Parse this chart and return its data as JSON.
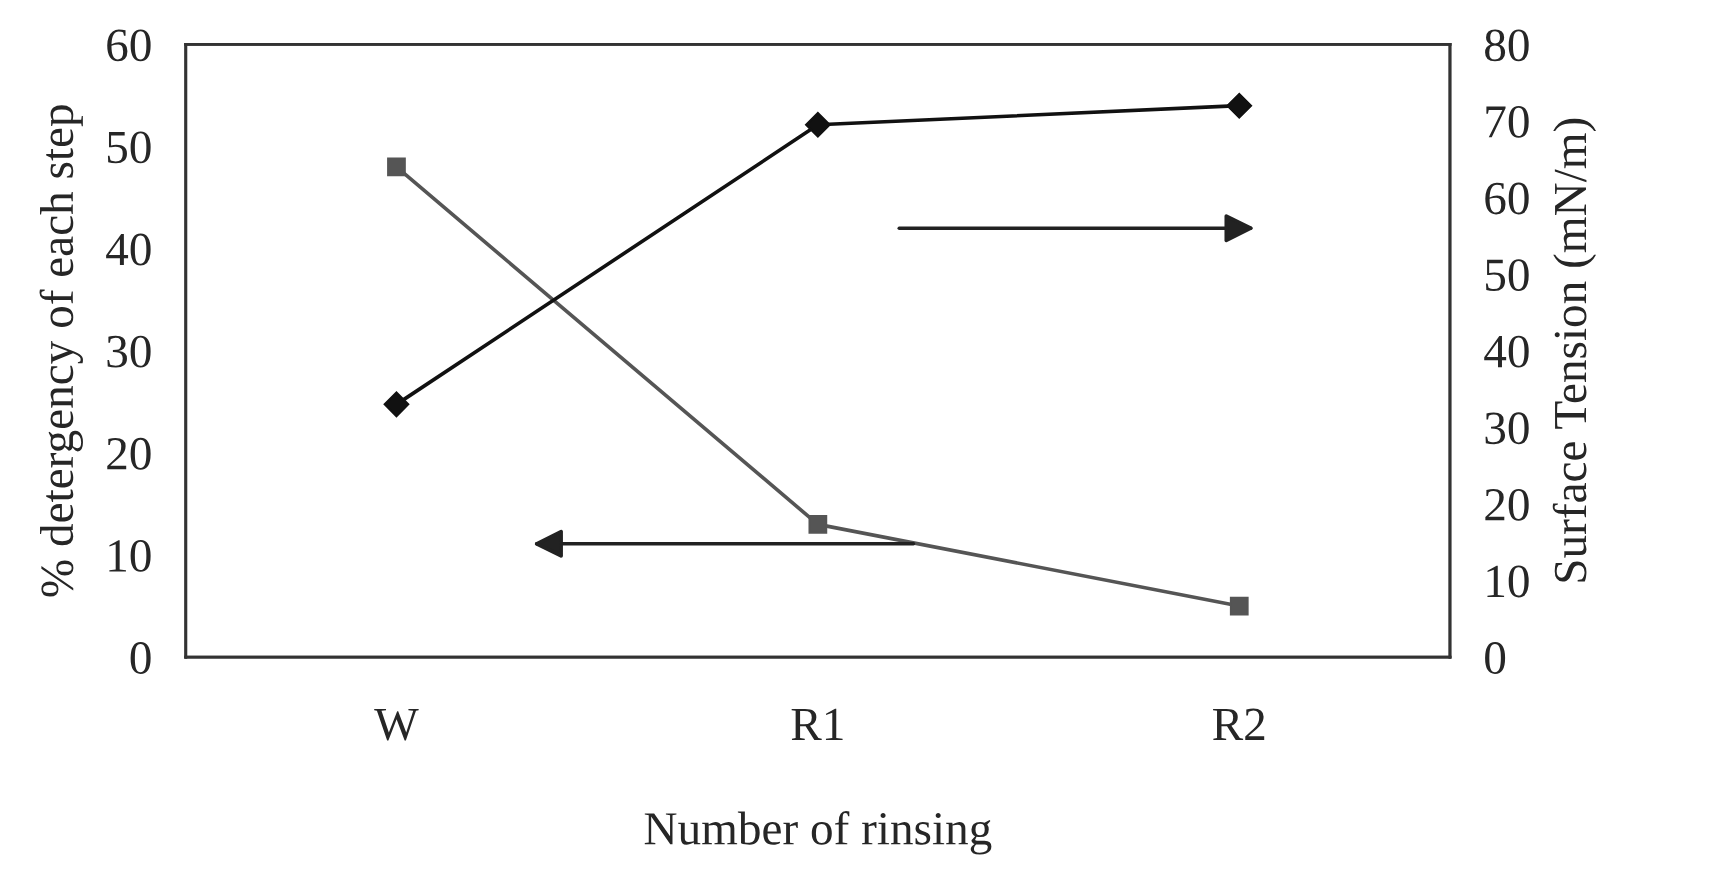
{
  "chart_data": {
    "type": "line",
    "xlabel": "Number of rinsing",
    "ylabel": "% detergency of each step",
    "y2label": "Surface Tension (mN/m)",
    "categories": [
      "W",
      "R1",
      "R2"
    ],
    "series": [
      {
        "color": "#555555",
        "marker": "square",
        "values": [
          48,
          13,
          5
        ]
      },
      {
        "color": "#111111",
        "marker": "diamond",
        "axis": "y2",
        "values": [
          33,
          69.5,
          72
        ]
      }
    ],
    "ylim": [
      0,
      60
    ],
    "yticks": [
      0,
      10,
      20,
      30,
      40,
      50,
      60
    ],
    "y2lim": [
      0,
      80
    ],
    "y2ticks": [
      0,
      10,
      20,
      30,
      40,
      50,
      60,
      70,
      80
    ],
    "grid": false
  }
}
